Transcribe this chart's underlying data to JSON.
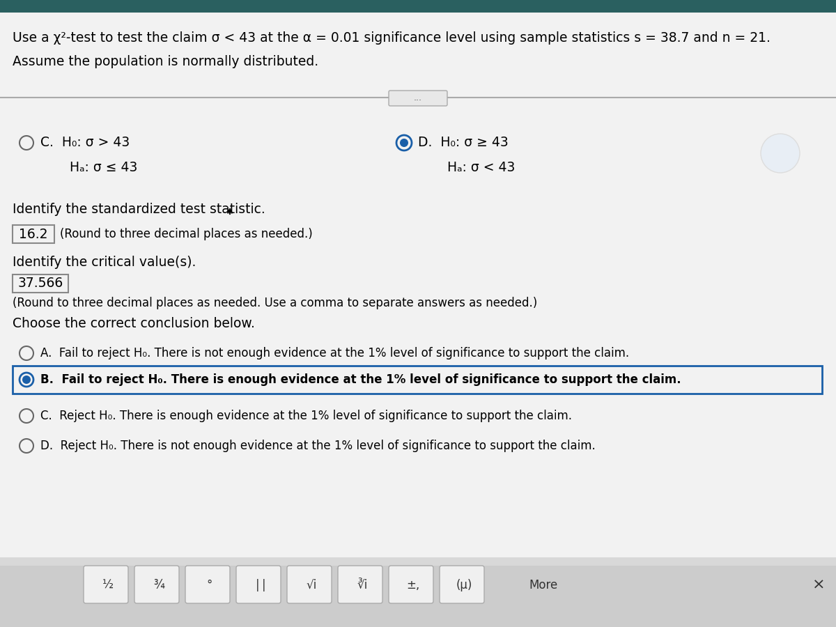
{
  "bg_top": "#2d6b6b",
  "bg_main": "#e8e8e8",
  "bg_white": "#f5f5f5",
  "sep_line_color": "#aaaaaa",
  "blue": "#1a5fa8",
  "dark_blue": "#1a4a8a",
  "title_line1": "Use a χ²-test to test the claim σ < 43 at the α = 0.01 significance level using sample statistics s = 38.7 and n = 21.",
  "title_line2": "Assume the population is normally distributed.",
  "option_C_H0": "C.  H₀: σ > 43",
  "option_C_Ha": "       Hₐ: σ ≤ 43",
  "option_D_H0": "D.  H₀: σ ≥ 43",
  "option_D_Ha": "       Hₐ: σ < 43",
  "identify_stat": "Identify the standardized test statistic.",
  "stat_value": "16.2",
  "stat_note": "(Round to three decimal places as needed.)",
  "identify_critical": "Identify the critical value(s).",
  "critical_value": "37.566",
  "critical_note": "(Round to three decimal places as needed. Use a comma to separate answers as needed.)",
  "choose_conclusion": "Choose the correct conclusion below.",
  "opt_A_label": "A.",
  "opt_A_text": "Fail to reject H₀. There is not enough evidence at the 1% level of significance to support the claim.",
  "opt_B_label": "B.",
  "opt_B_text": "Fail to reject H₀. There is enough evidence at the 1% level of significance to support the claim.",
  "opt_C_label": "C.",
  "opt_C_text": "Reject H₀. There is enough evidence at the 1% level of significance to support the claim.",
  "opt_D_label": "D.",
  "opt_D_text": "Reject H₀. There is not enough evidence at the 1% level of significance to support the claim.",
  "toolbar_bg": "#c8c8c8",
  "close_x": "×",
  "font_size_main": 13.5,
  "font_size_small": 12.0
}
